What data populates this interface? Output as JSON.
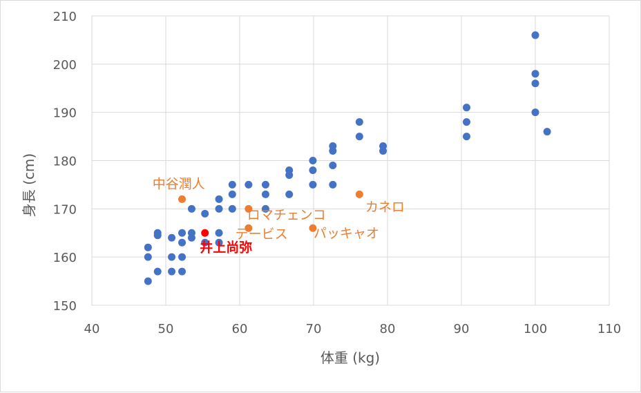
{
  "chart_data": {
    "type": "scatter",
    "xlabel": "体重 (kg)",
    "ylabel": "身長 (cm)",
    "xlim": [
      40,
      110
    ],
    "ylim": [
      150,
      210
    ],
    "x_ticks": [
      "40",
      "50",
      "60",
      "70",
      "80",
      "90",
      "100",
      "110"
    ],
    "y_ticks": [
      "150",
      "160",
      "170",
      "180",
      "190",
      "200",
      "210"
    ],
    "grid": true,
    "legend": "none",
    "colors": {
      "blue": "#4472C4",
      "orange": "#ED7D31",
      "red": "#FF0000"
    },
    "series": [
      {
        "color": "blue",
        "points": [
          [
            47.6,
            155
          ],
          [
            47.6,
            160
          ],
          [
            47.6,
            162
          ],
          [
            48.9,
            157
          ],
          [
            48.9,
            164.5
          ],
          [
            48.9,
            165
          ],
          [
            50.8,
            157
          ],
          [
            50.8,
            160
          ],
          [
            50.8,
            164
          ],
          [
            52.2,
            157
          ],
          [
            52.2,
            160
          ],
          [
            52.2,
            163
          ],
          [
            52.2,
            165
          ],
          [
            53.5,
            164
          ],
          [
            53.5,
            165
          ],
          [
            53.5,
            170
          ],
          [
            55.3,
            163
          ],
          [
            55.3,
            169
          ],
          [
            57.2,
            163
          ],
          [
            57.2,
            165
          ],
          [
            57.2,
            170
          ],
          [
            57.2,
            172
          ],
          [
            59.0,
            170
          ],
          [
            59.0,
            173
          ],
          [
            59.0,
            175
          ],
          [
            61.2,
            175
          ],
          [
            63.5,
            170
          ],
          [
            63.5,
            173
          ],
          [
            63.5,
            175
          ],
          [
            66.7,
            173
          ],
          [
            66.7,
            177
          ],
          [
            66.7,
            178
          ],
          [
            69.9,
            175
          ],
          [
            69.9,
            178
          ],
          [
            69.9,
            180
          ],
          [
            72.6,
            175
          ],
          [
            72.6,
            179
          ],
          [
            72.6,
            182
          ],
          [
            72.6,
            183
          ],
          [
            76.2,
            185
          ],
          [
            76.2,
            188
          ],
          [
            79.4,
            182
          ],
          [
            79.4,
            183
          ],
          [
            90.7,
            185
          ],
          [
            90.7,
            188
          ],
          [
            90.7,
            191
          ],
          [
            100,
            190
          ],
          [
            100,
            196
          ],
          [
            100,
            198
          ],
          [
            100,
            206
          ],
          [
            101.6,
            186
          ]
        ]
      },
      {
        "color": "orange",
        "points": [
          [
            52.2,
            172
          ],
          [
            61.2,
            170
          ],
          [
            61.2,
            166
          ],
          [
            69.9,
            166
          ],
          [
            76.2,
            173
          ]
        ]
      },
      {
        "color": "red",
        "points": [
          [
            55.3,
            165
          ]
        ]
      }
    ],
    "annotations": [
      {
        "text": "中谷潤人",
        "x": 48.2,
        "y": 174.3,
        "color": "orange"
      },
      {
        "text": "ロマチェンコ",
        "x": 61.0,
        "y": 167.8,
        "color": "orange"
      },
      {
        "text": "デービス",
        "x": 59.4,
        "y": 163.9,
        "color": "orange"
      },
      {
        "text": "パッキャオ",
        "x": 70.0,
        "y": 164.0,
        "color": "orange"
      },
      {
        "text": "カネロ",
        "x": 77.0,
        "y": 169.5,
        "color": "orange"
      },
      {
        "text": "井上尚弥",
        "x": 54.6,
        "y": 161.1,
        "color": "red"
      }
    ]
  }
}
